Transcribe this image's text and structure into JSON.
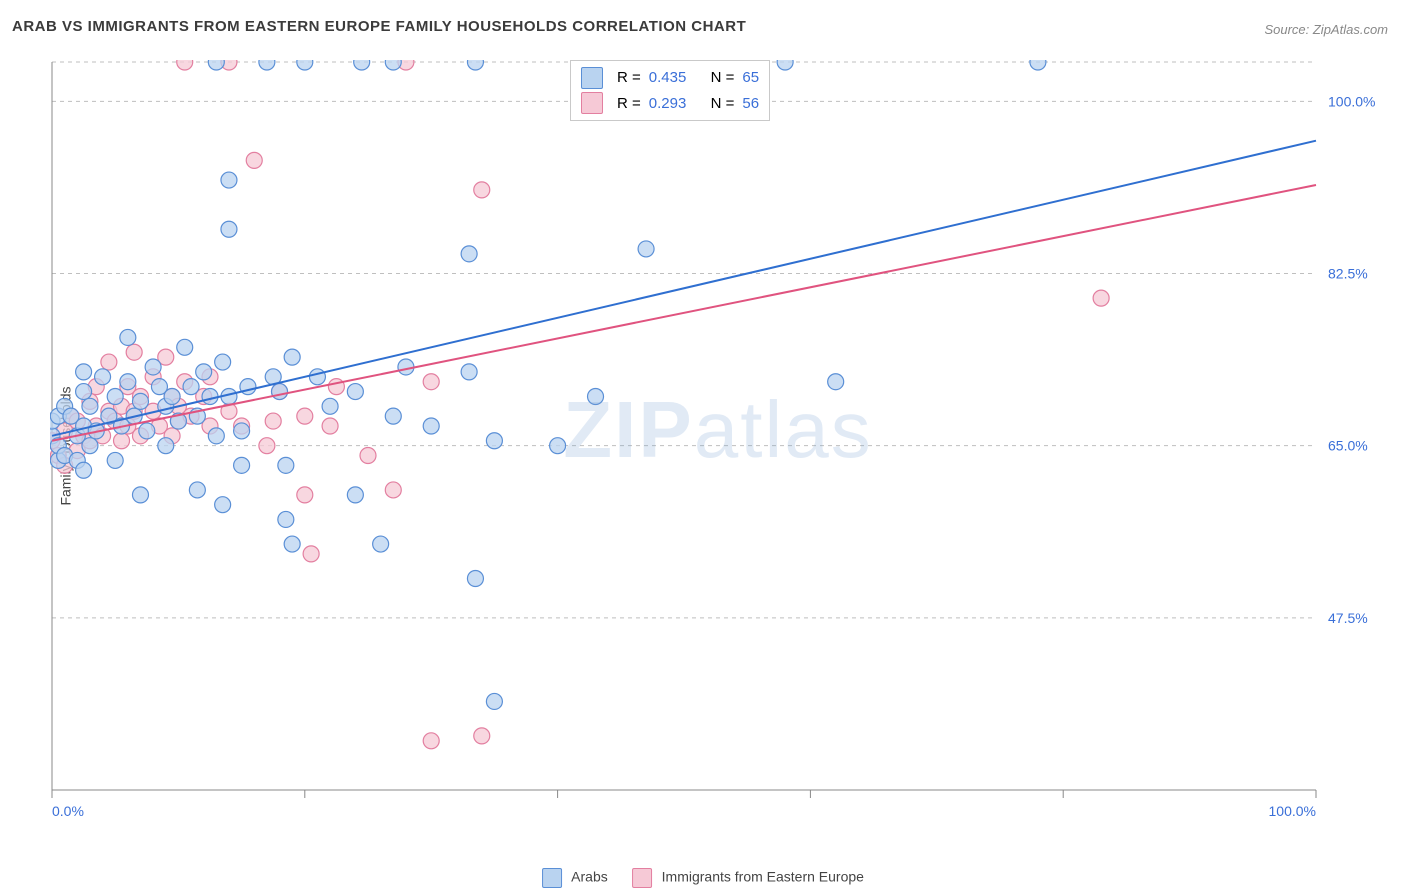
{
  "title": "ARAB VS IMMIGRANTS FROM EASTERN EUROPE FAMILY HOUSEHOLDS CORRELATION CHART",
  "source": "Source: ZipAtlas.com",
  "ylabel": "Family Households",
  "watermark_a": "ZIP",
  "watermark_b": "atlas",
  "chart": {
    "type": "scatter+regression",
    "background_color": "#ffffff",
    "axis_color": "#888888",
    "grid_color": "#bfbfbf",
    "grid_dash": "4,4",
    "tick_color": "#888888",
    "tick_label_color": "#3a6fd8",
    "xlim": [
      0,
      100
    ],
    "ylim": [
      30,
      104
    ],
    "x_ticks": [
      0,
      20,
      40,
      60,
      80,
      100
    ],
    "x_tick_labels": [
      "0.0%",
      "",
      "",
      "",
      "",
      "100.0%"
    ],
    "y_gridlines": [
      47.5,
      65.0,
      82.5,
      100.0,
      104.0
    ],
    "y_tick_labels": [
      "47.5%",
      "65.0%",
      "82.5%",
      "100.0%"
    ],
    "y_tick_values": [
      47.5,
      65.0,
      82.5,
      100.0
    ],
    "marker_radius": 8,
    "marker_stroke_width": 1.2,
    "line_width": 2,
    "series": [
      {
        "name": "Arabs",
        "fill": "#b9d3f0",
        "stroke": "#5a8fd6",
        "line_color": "#2f6fd0",
        "R": "0.435",
        "N": "65",
        "reg_start": [
          0,
          66.0
        ],
        "reg_end": [
          100,
          96.0
        ],
        "points": [
          [
            0,
            66
          ],
          [
            0,
            67.5
          ],
          [
            0.5,
            68
          ],
          [
            0.5,
            63.5
          ],
          [
            0.5,
            65
          ],
          [
            1,
            69
          ],
          [
            1,
            64
          ],
          [
            1.5,
            68
          ],
          [
            2,
            66
          ],
          [
            2,
            63.5
          ],
          [
            2.5,
            70.5
          ],
          [
            2.5,
            72.5
          ],
          [
            2.5,
            67
          ],
          [
            2.5,
            62.5
          ],
          [
            3,
            69
          ],
          [
            3,
            65
          ],
          [
            3.5,
            66.5
          ],
          [
            4,
            72
          ],
          [
            4.5,
            68
          ],
          [
            5,
            70
          ],
          [
            5,
            63.5
          ],
          [
            5.5,
            67
          ],
          [
            6,
            71.5
          ],
          [
            6,
            76
          ],
          [
            6.5,
            68
          ],
          [
            7,
            69.5
          ],
          [
            7.5,
            66.5
          ],
          [
            7,
            60
          ],
          [
            8,
            73
          ],
          [
            8.5,
            71
          ],
          [
            9,
            69
          ],
          [
            9,
            65
          ],
          [
            9.5,
            70
          ],
          [
            10,
            67.5
          ],
          [
            10.5,
            75
          ],
          [
            11,
            71
          ],
          [
            11.5,
            68
          ],
          [
            11.5,
            60.5
          ],
          [
            12,
            72.5
          ],
          [
            12.5,
            70
          ],
          [
            13,
            66
          ],
          [
            13,
            104
          ],
          [
            13.5,
            73.5
          ],
          [
            13.5,
            59
          ],
          [
            14,
            70
          ],
          [
            14,
            87
          ],
          [
            14,
            92
          ],
          [
            15,
            66.5
          ],
          [
            15,
            63
          ],
          [
            15.5,
            71
          ],
          [
            17,
            104
          ],
          [
            17.5,
            72
          ],
          [
            18,
            70.5
          ],
          [
            18.5,
            63
          ],
          [
            18.5,
            57.5
          ],
          [
            19,
            74
          ],
          [
            19,
            55
          ],
          [
            20,
            104
          ],
          [
            21,
            72
          ],
          [
            22,
            69
          ],
          [
            24,
            70.5
          ],
          [
            24,
            60
          ],
          [
            24.5,
            104
          ],
          [
            26,
            55
          ],
          [
            27,
            68
          ],
          [
            27,
            104
          ],
          [
            28,
            73
          ],
          [
            30,
            67
          ],
          [
            33,
            72.5
          ],
          [
            33,
            84.5
          ],
          [
            33.5,
            51.5
          ],
          [
            33.5,
            104
          ],
          [
            35,
            65.5
          ],
          [
            35,
            39
          ],
          [
            40,
            65
          ],
          [
            43,
            70
          ],
          [
            47,
            85
          ],
          [
            58,
            104
          ],
          [
            62,
            71.5
          ],
          [
            78,
            104
          ]
        ]
      },
      {
        "name": "Immigrants from Eastern Europe",
        "fill": "#f6c9d6",
        "stroke": "#e37fa0",
        "line_color": "#e0537f",
        "R": "0.293",
        "N": "56",
        "reg_start": [
          0,
          65.5
        ],
        "reg_end": [
          100,
          91.5
        ],
        "points": [
          [
            0,
            65.5
          ],
          [
            0.5,
            64
          ],
          [
            1,
            66.5
          ],
          [
            1,
            63
          ],
          [
            1.5,
            68
          ],
          [
            2,
            67.5
          ],
          [
            2,
            64.5
          ],
          [
            2.5,
            66
          ],
          [
            3,
            69.5
          ],
          [
            3,
            65.5
          ],
          [
            3.5,
            67
          ],
          [
            3.5,
            71
          ],
          [
            4,
            66
          ],
          [
            4.5,
            68.5
          ],
          [
            4.5,
            73.5
          ],
          [
            5,
            67.5
          ],
          [
            5.5,
            69
          ],
          [
            5.5,
            65.5
          ],
          [
            6,
            71
          ],
          [
            6,
            67
          ],
          [
            6.5,
            68.5
          ],
          [
            6.5,
            74.5
          ],
          [
            7,
            66
          ],
          [
            7,
            70
          ],
          [
            8,
            68.5
          ],
          [
            8,
            72
          ],
          [
            8.5,
            67
          ],
          [
            9,
            74
          ],
          [
            9.5,
            70
          ],
          [
            9.5,
            66
          ],
          [
            10,
            69
          ],
          [
            10,
            67.5
          ],
          [
            10.5,
            71.5
          ],
          [
            10.5,
            104
          ],
          [
            11,
            68
          ],
          [
            12,
            70
          ],
          [
            12.5,
            67
          ],
          [
            12.5,
            72
          ],
          [
            14,
            68.5
          ],
          [
            14,
            104
          ],
          [
            15,
            67
          ],
          [
            16,
            94
          ],
          [
            17,
            65
          ],
          [
            17.5,
            67.5
          ],
          [
            18,
            70.5
          ],
          [
            20,
            68
          ],
          [
            20,
            60
          ],
          [
            20.5,
            54
          ],
          [
            22,
            67
          ],
          [
            22.5,
            71
          ],
          [
            25,
            64
          ],
          [
            27,
            60.5
          ],
          [
            28,
            104
          ],
          [
            30,
            35
          ],
          [
            30,
            71.5
          ],
          [
            34,
            35.5
          ],
          [
            34,
            91
          ],
          [
            83,
            80
          ]
        ]
      }
    ]
  },
  "legend_bottom": {
    "items": [
      {
        "label": "Arabs",
        "fill": "#b9d3f0",
        "stroke": "#5a8fd6"
      },
      {
        "label": "Immigrants from Eastern Europe",
        "fill": "#f6c9d6",
        "stroke": "#e37fa0"
      }
    ]
  },
  "stats_box": {
    "r_label": "R =",
    "n_label": "N ="
  }
}
